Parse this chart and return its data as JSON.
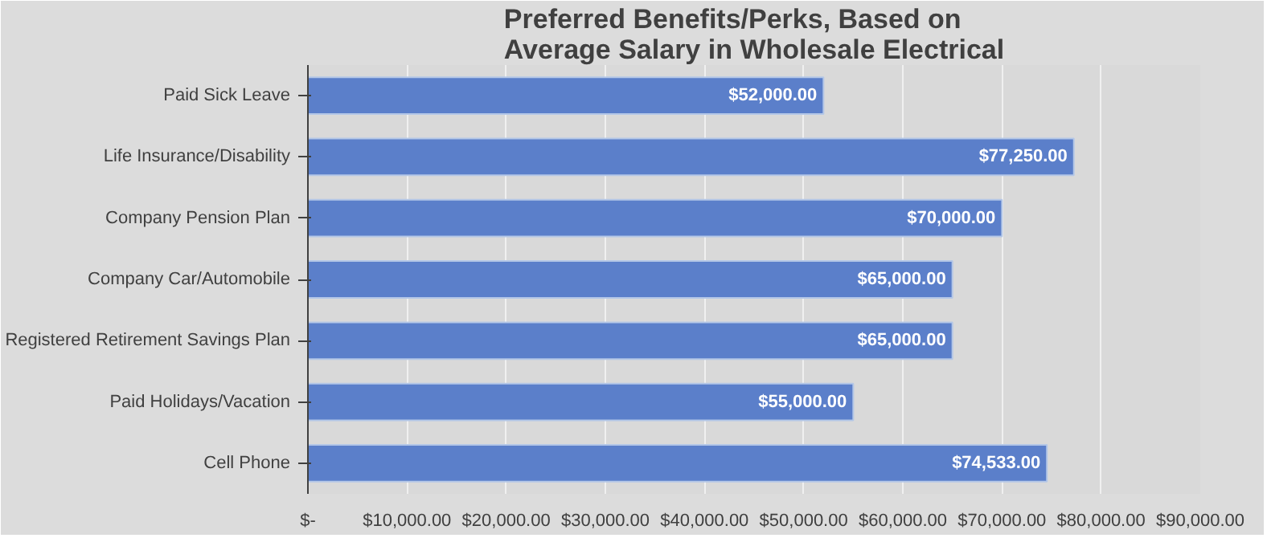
{
  "chart_data": {
    "type": "bar",
    "orientation": "horizontal",
    "title": "Preferred Benefits/Perks, Based on\nAverage Salary in Wholesale Electrical",
    "categories": [
      "Paid Sick Leave",
      "Life Insurance/Disability",
      "Company Pension Plan",
      "Company Car/Automobile",
      "Registered Retirement Savings Plan",
      "Paid Holidays/Vacation",
      "Cell Phone"
    ],
    "values": [
      52000,
      77250,
      70000,
      65000,
      65000,
      55000,
      74533
    ],
    "value_labels": [
      "$52,000.00",
      "$77,250.00",
      "$70,000.00",
      "$65,000.00",
      "$65,000.00",
      "$55,000.00",
      "$74,533.00"
    ],
    "color": "#5b7fca",
    "xlim": [
      0,
      90000
    ],
    "xticks": [
      {
        "value": 0,
        "label": "$-"
      },
      {
        "value": 10000,
        "label": "$10,000.00"
      },
      {
        "value": 20000,
        "label": "$20,000.00"
      },
      {
        "value": 30000,
        "label": "$30,000.00"
      },
      {
        "value": 40000,
        "label": "$40,000.00"
      },
      {
        "value": 50000,
        "label": "$50,000.00"
      },
      {
        "value": 60000,
        "label": "$60,000.00"
      },
      {
        "value": 70000,
        "label": "$70,000.00"
      },
      {
        "value": 80000,
        "label": "$80,000.00"
      },
      {
        "value": 90000,
        "label": "$90,000.00"
      }
    ],
    "grid": "x"
  }
}
